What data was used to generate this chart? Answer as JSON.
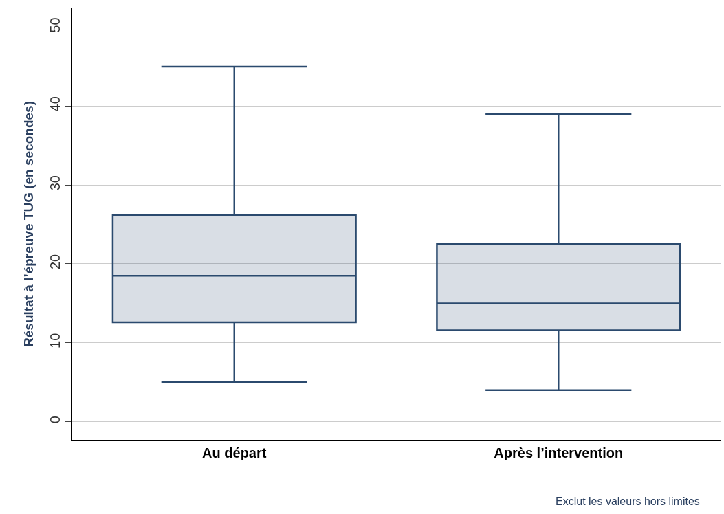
{
  "chart_data": {
    "type": "box",
    "ylabel": "Résultat à l’épreuve TUG (en secondes)",
    "categories": [
      "Au départ",
      "Après l’intervention"
    ],
    "boxes": [
      {
        "low": 5,
        "q1": 12.6,
        "median": 18.5,
        "q3": 26.2,
        "high": 45
      },
      {
        "low": 4,
        "q1": 11.6,
        "median": 15,
        "q3": 22.5,
        "high": 39
      }
    ],
    "color": "#2b4a6e",
    "ylim": [
      -2.3,
      52.4
    ],
    "yticks": [
      0,
      10,
      20,
      30,
      40,
      50
    ],
    "grid": "y",
    "legend": false,
    "annotations": [
      "Exclut les valeurs hors limites"
    ]
  }
}
